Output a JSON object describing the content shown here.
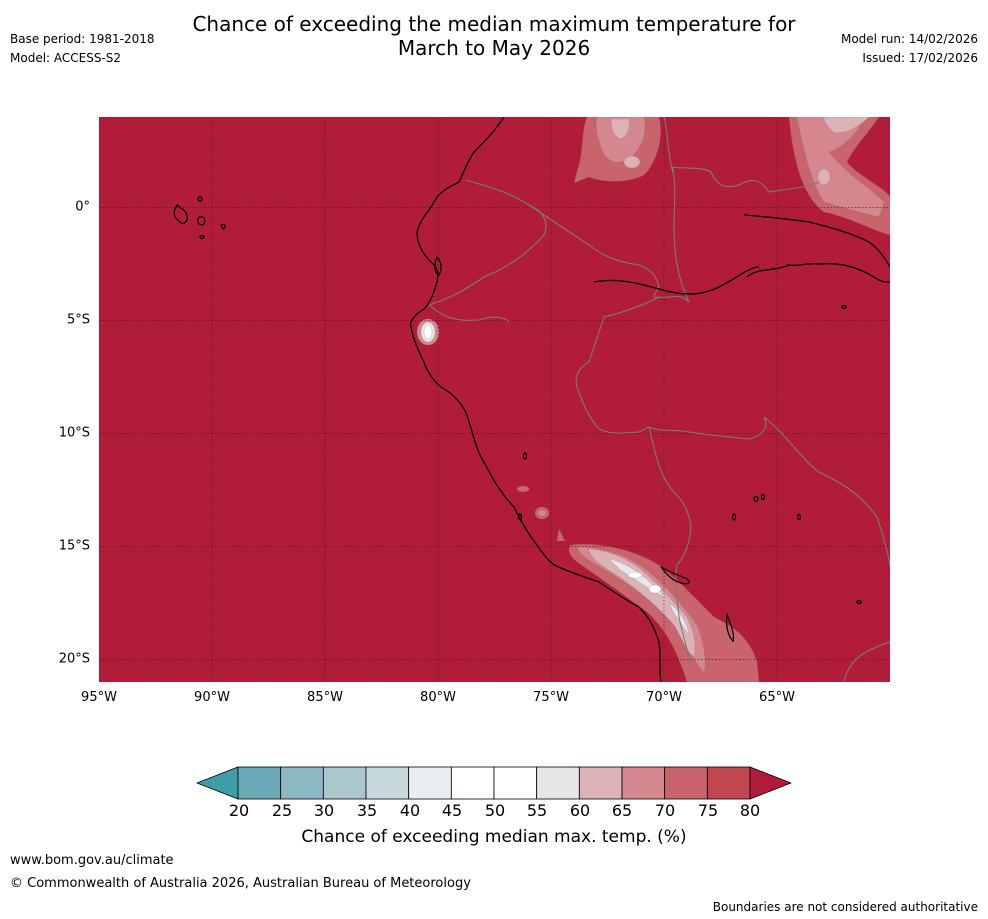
{
  "header": {
    "title_line1": "Chance of exceeding the median maximum temperature for",
    "title_line2": "March to May 2026",
    "base_period": "Base period: 1981-2018",
    "model": "Model: ACCESS-S2",
    "model_run": "Model run: 14/02/2026",
    "issued": "Issued: 17/02/2026"
  },
  "map": {
    "lon_ticks": [
      "95°W",
      "90°W",
      "85°W",
      "80°W",
      "75°W",
      "70°W",
      "65°W"
    ],
    "lat_ticks": [
      "0°",
      "5°S",
      "10°S",
      "15°S",
      "20°S"
    ],
    "lon_range": [
      -95,
      -60
    ],
    "lat_range": [
      -21,
      4
    ],
    "dominant_value": "80+",
    "colors": {
      "bg": "#b11d38",
      "c75": "#c0474f",
      "c70": "#c9636c",
      "c65": "#d4878e",
      "c60": "#dcb2b7",
      "c55": "#e8e6e7",
      "c50": "#ffffff",
      "coast": "#000000",
      "border": "#7a7a7a",
      "grid": "#3a1a20"
    }
  },
  "colorbar": {
    "ticks": [
      "20",
      "25",
      "30",
      "35",
      "40",
      "45",
      "50",
      "55",
      "60",
      "65",
      "70",
      "75",
      "80"
    ],
    "colors": [
      "#6aaab7",
      "#8bb8c4",
      "#a9c7cd",
      "#c7d8dc",
      "#e8eef0",
      "#ffffff",
      "#ffffff",
      "#e8e6e7",
      "#dcb2b7",
      "#d4878e",
      "#c9636c",
      "#c0474f"
    ],
    "low_color": "#3f9da9",
    "high_color": "#b11d38",
    "label": "Chance of exceeding median max. temp. (%)"
  },
  "footer": {
    "url": "www.bom.gov.au/climate",
    "copyright": "© Commonwealth of Australia 2026, Australian Bureau of Meteorology",
    "disclaimer": "Boundaries are not considered authoritative"
  }
}
